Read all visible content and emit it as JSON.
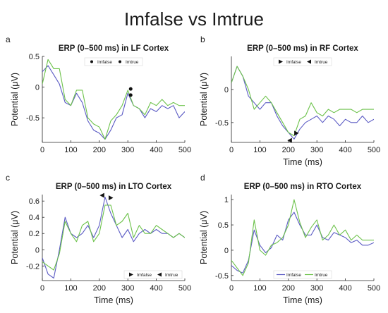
{
  "figure_title": "Imfalse vs Imtrue",
  "colors": {
    "imfalse": "#5b5bc4",
    "imtrue": "#6cc24a",
    "axis": "#262626",
    "marker": "#111111"
  },
  "chart_data": [
    {
      "panel": "a",
      "type": "line",
      "title": "ERP (0–500 ms) in LF Cortex",
      "xlabel": "",
      "ylabel": "Potential (μV)",
      "xlim": [
        0,
        500
      ],
      "ylim": [
        -0.9,
        0.5
      ],
      "xticks": [
        0,
        100,
        200,
        300,
        400,
        500
      ],
      "yticks": [
        -0.5,
        0,
        0.5
      ],
      "legend": {
        "position": "top-center",
        "entries": [
          "Imfalse",
          "Imtrue"
        ]
      },
      "x": [
        0,
        20,
        40,
        60,
        80,
        100,
        120,
        140,
        160,
        180,
        200,
        220,
        240,
        260,
        280,
        300,
        320,
        340,
        360,
        380,
        400,
        420,
        440,
        460,
        480,
        500
      ],
      "series": [
        {
          "name": "Imfalse",
          "values": [
            0.25,
            0.35,
            0.2,
            0.05,
            -0.25,
            -0.3,
            -0.1,
            -0.25,
            -0.55,
            -0.7,
            -0.75,
            -0.85,
            -0.7,
            -0.5,
            -0.45,
            -0.1,
            -0.3,
            -0.35,
            -0.5,
            -0.35,
            -0.4,
            -0.3,
            -0.35,
            -0.3,
            -0.5,
            -0.4
          ]
        },
        {
          "name": "Imtrue",
          "values": [
            0.05,
            0.45,
            0.3,
            0.3,
            -0.2,
            -0.3,
            -0.05,
            -0.05,
            -0.5,
            -0.6,
            -0.65,
            -0.85,
            -0.55,
            -0.45,
            -0.3,
            -0.05,
            -0.3,
            -0.35,
            -0.45,
            -0.25,
            -0.3,
            -0.2,
            -0.3,
            -0.25,
            -0.3,
            -0.3
          ]
        }
      ],
      "markers": [
        {
          "x": 310,
          "y": -0.03,
          "shape": "circle"
        },
        {
          "x": 310,
          "y": -0.13,
          "shape": "circle"
        }
      ]
    },
    {
      "panel": "b",
      "type": "line",
      "title": "ERP (0–500 ms) in RF Cortex",
      "xlabel": "Time (ms)",
      "ylabel": "Potential (μV)",
      "xlim": [
        0,
        500
      ],
      "ylim": [
        -0.8,
        0.5
      ],
      "xticks": [
        0,
        100,
        200,
        300,
        400,
        500
      ],
      "yticks": [
        -0.5,
        0
      ],
      "legend": {
        "position": "top-center",
        "entries": [
          "Imfalse",
          "Imtrue"
        ]
      },
      "x": [
        0,
        20,
        40,
        60,
        80,
        100,
        120,
        140,
        160,
        180,
        200,
        220,
        240,
        260,
        280,
        300,
        320,
        340,
        360,
        380,
        400,
        420,
        440,
        460,
        480,
        500
      ],
      "series": [
        {
          "name": "Imfalse",
          "values": [
            0.1,
            0.35,
            0.2,
            -0.1,
            -0.2,
            -0.3,
            -0.2,
            -0.2,
            -0.4,
            -0.55,
            -0.65,
            -0.75,
            -0.6,
            -0.5,
            -0.45,
            -0.4,
            -0.5,
            -0.4,
            -0.45,
            -0.55,
            -0.45,
            -0.5,
            -0.5,
            -0.4,
            -0.5,
            -0.45
          ]
        },
        {
          "name": "Imtrue",
          "values": [
            0.1,
            0.35,
            0.2,
            0.0,
            -0.3,
            -0.2,
            -0.1,
            -0.2,
            -0.35,
            -0.5,
            -0.65,
            -0.7,
            -0.45,
            -0.4,
            -0.2,
            -0.35,
            -0.4,
            -0.3,
            -0.35,
            -0.3,
            -0.3,
            -0.3,
            -0.35,
            -0.3,
            -0.3,
            -0.3
          ]
        }
      ],
      "markers": [
        {
          "x": 205,
          "y": -0.77,
          "shape": "triangle-left"
        },
        {
          "x": 228,
          "y": -0.66,
          "shape": "triangle-right"
        }
      ]
    },
    {
      "panel": "c",
      "type": "line",
      "title": "ERP (0–500 ms) in LTO Cortex",
      "xlabel": "Time (ms)",
      "ylabel": "Potential (μV)",
      "xlim": [
        0,
        500
      ],
      "ylim": [
        -0.38,
        0.68
      ],
      "xticks": [
        0,
        100,
        200,
        300,
        400,
        500
      ],
      "yticks": [
        -0.2,
        0,
        0.2,
        0.4,
        0.6
      ],
      "legend": {
        "position": "bottom-right",
        "entries": [
          "Imfalse",
          "Imtrue"
        ]
      },
      "x": [
        0,
        20,
        40,
        60,
        80,
        100,
        120,
        140,
        160,
        180,
        200,
        220,
        240,
        260,
        280,
        300,
        320,
        340,
        360,
        380,
        400,
        420,
        440,
        460,
        480,
        500
      ],
      "series": [
        {
          "name": "Imfalse",
          "values": [
            -0.1,
            -0.3,
            -0.35,
            0.0,
            0.4,
            0.2,
            0.15,
            0.2,
            0.3,
            0.15,
            0.3,
            0.65,
            0.45,
            0.3,
            0.15,
            0.25,
            0.1,
            0.2,
            0.25,
            0.2,
            0.25,
            0.2,
            0.2,
            0.15,
            0.2,
            0.15
          ]
        },
        {
          "name": "Imtrue",
          "values": [
            -0.15,
            -0.2,
            -0.25,
            -0.05,
            0.35,
            0.2,
            0.1,
            0.3,
            0.35,
            0.1,
            0.2,
            0.55,
            0.55,
            0.3,
            0.35,
            0.45,
            0.15,
            0.3,
            0.2,
            0.2,
            0.3,
            0.25,
            0.2,
            0.15,
            0.2,
            0.15
          ]
        }
      ],
      "markers": [
        {
          "x": 210,
          "y": 0.67,
          "shape": "triangle-left"
        },
        {
          "x": 240,
          "y": 0.64,
          "shape": "triangle-right"
        }
      ]
    },
    {
      "panel": "d",
      "type": "line",
      "title": "ERP (0–500 ms) in RTO Cortex",
      "xlabel": "Time (ms)",
      "ylabel": "Potential (μV)",
      "xlim": [
        0,
        500
      ],
      "ylim": [
        -0.6,
        1.1
      ],
      "xticks": [
        0,
        100,
        200,
        300,
        400,
        500
      ],
      "yticks": [
        -0.5,
        0,
        0.5,
        1
      ],
      "legend": {
        "position": "bottom-center",
        "entries": [
          "Imfalse",
          "Imtrue"
        ]
      },
      "x": [
        0,
        20,
        40,
        60,
        80,
        100,
        120,
        140,
        160,
        180,
        200,
        220,
        240,
        260,
        280,
        300,
        320,
        340,
        360,
        380,
        400,
        420,
        440,
        460,
        480,
        500
      ],
      "series": [
        {
          "name": "Imfalse",
          "values": [
            -0.3,
            -0.4,
            -0.45,
            -0.2,
            0.4,
            0.1,
            -0.05,
            0.05,
            0.3,
            0.2,
            0.6,
            0.75,
            0.5,
            0.3,
            0.3,
            0.5,
            0.25,
            0.2,
            0.35,
            0.3,
            0.25,
            0.15,
            0.2,
            0.1,
            0.1,
            0.15
          ]
        },
        {
          "name": "Imtrue",
          "values": [
            -0.2,
            -0.35,
            -0.5,
            -0.25,
            0.6,
            0.0,
            -0.1,
            0.1,
            0.15,
            0.25,
            0.5,
            1.0,
            0.55,
            0.25,
            0.45,
            0.6,
            0.2,
            0.3,
            0.5,
            0.3,
            0.4,
            0.2,
            0.3,
            0.2,
            0.2,
            0.2
          ]
        }
      ],
      "markers": []
    }
  ]
}
